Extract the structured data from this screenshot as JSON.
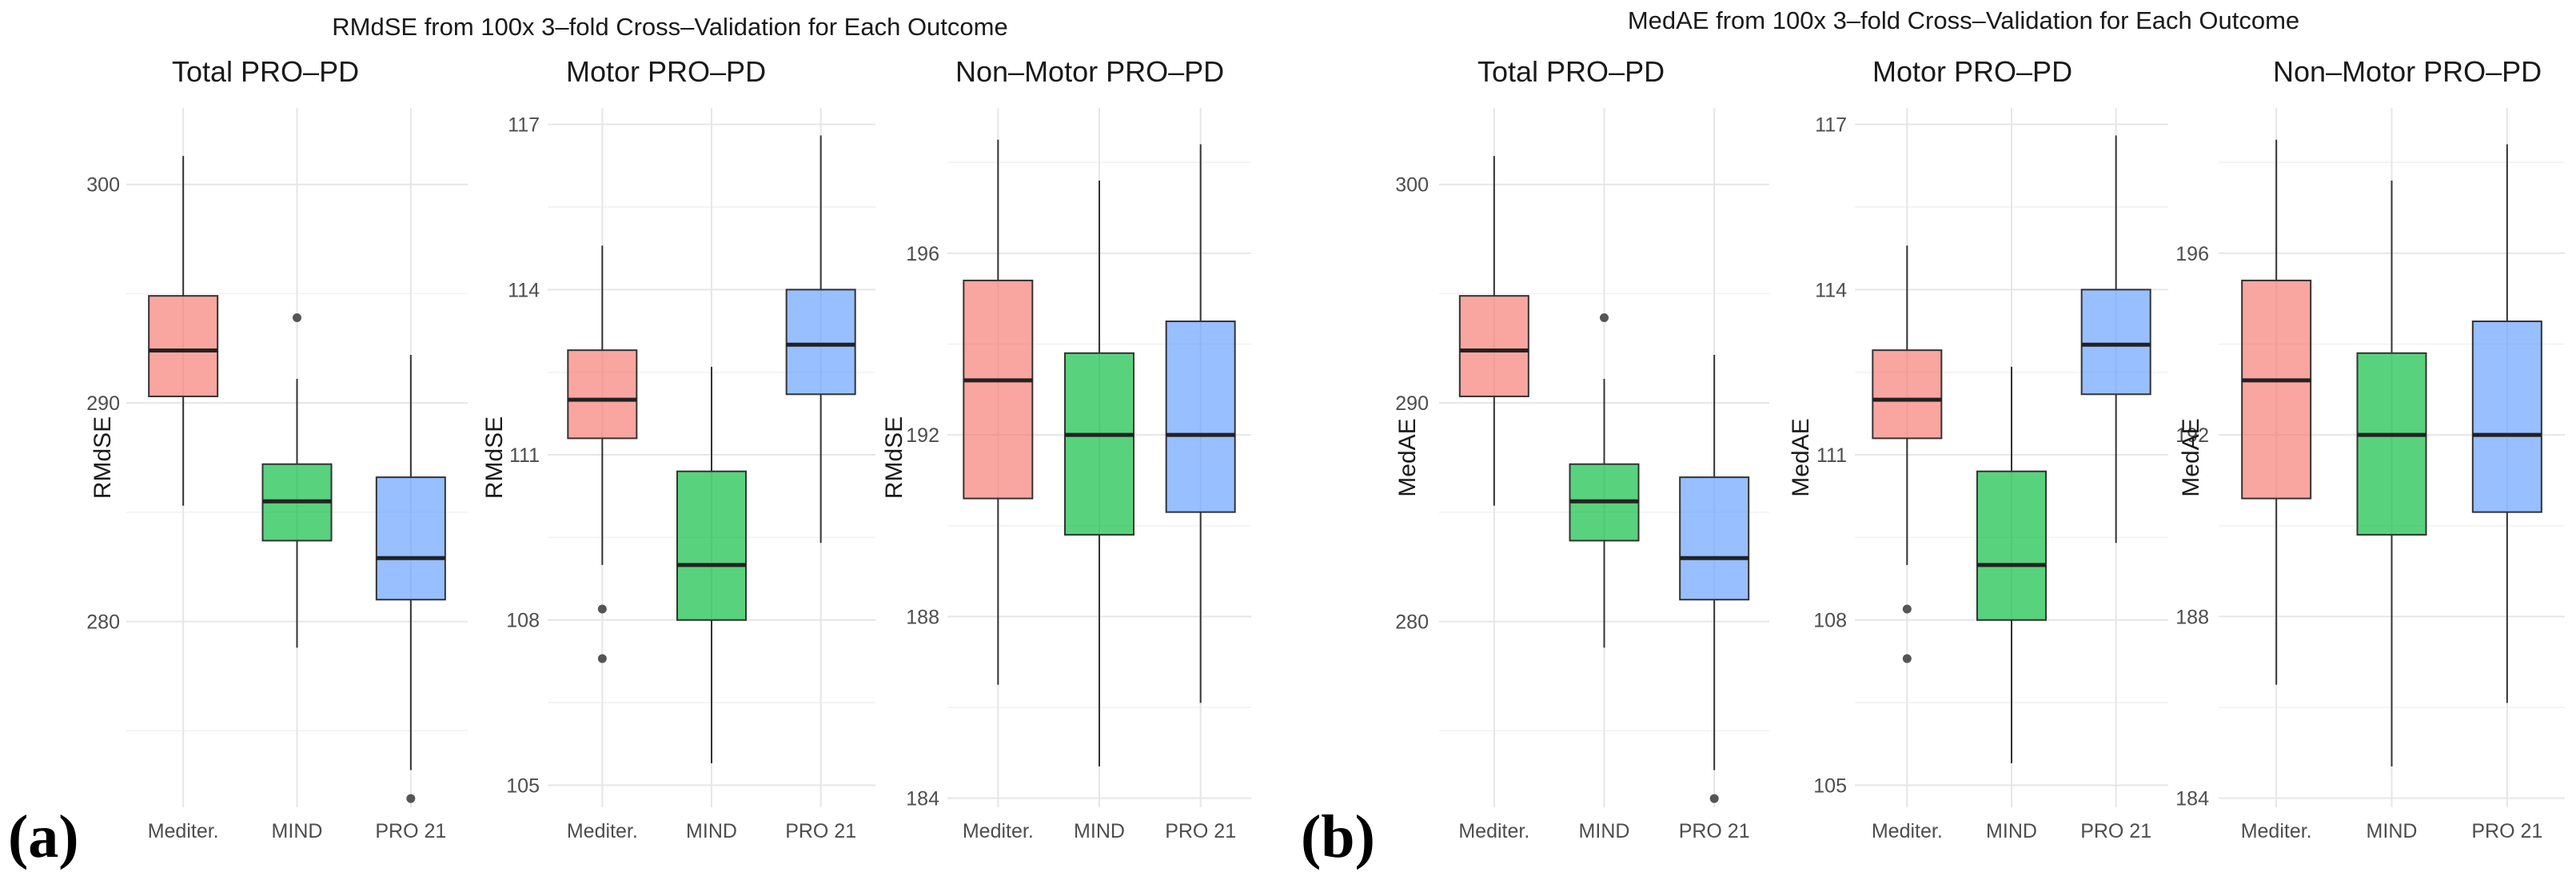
{
  "figures": [
    {
      "label": "(a)",
      "title": "RMdSE from 100x 3–fold Cross–Validation for Each Outcome"
    },
    {
      "label": "(b)",
      "title": "MedAE from 100x 3–fold Cross–Validation for Each Outcome"
    }
  ],
  "colors": {
    "Mediter.": "#F8766D",
    "MIND": "#00BA38",
    "PRO 21": "#619CFF"
  },
  "chart_data": [
    {
      "type": "box",
      "figure": "(a)",
      "title": "Total PRO–PD",
      "ylabel": "RMdSE",
      "categories": [
        "Mediter.",
        "MIND",
        "PRO 21"
      ],
      "yticks": [
        280,
        290,
        300
      ],
      "ylim": [
        271.5,
        303.5
      ],
      "grid": true,
      "boxes": [
        {
          "name": "Mediter.",
          "whisker_low": 285.3,
          "q1": 290.3,
          "median": 292.4,
          "q3": 294.9,
          "whisker_high": 301.3,
          "outliers": []
        },
        {
          "name": "MIND",
          "whisker_low": 278.8,
          "q1": 283.7,
          "median": 285.5,
          "q3": 287.2,
          "whisker_high": 291.1,
          "outliers": [
            293.9
          ]
        },
        {
          "name": "PRO 21",
          "whisker_low": 273.2,
          "q1": 281.0,
          "median": 282.9,
          "q3": 286.6,
          "whisker_high": 292.2,
          "outliers": [
            271.9
          ]
        }
      ]
    },
    {
      "type": "box",
      "figure": "(a)",
      "title": "Motor PRO–PD",
      "ylabel": "RMdSE",
      "categories": [
        "Mediter.",
        "MIND",
        "PRO 21"
      ],
      "yticks": [
        105,
        108,
        111,
        114,
        117
      ],
      "ylim": [
        104.6,
        117.3
      ],
      "grid": true,
      "boxes": [
        {
          "name": "Mediter.",
          "whisker_low": 109.0,
          "q1": 111.3,
          "median": 112.0,
          "q3": 112.9,
          "whisker_high": 114.8,
          "outliers": [
            108.2,
            107.3
          ]
        },
        {
          "name": "MIND",
          "whisker_low": 105.4,
          "q1": 108.0,
          "median": 109.0,
          "q3": 110.7,
          "whisker_high": 112.6,
          "outliers": []
        },
        {
          "name": "PRO 21",
          "whisker_low": 109.4,
          "q1": 112.1,
          "median": 113.0,
          "q3": 114.0,
          "whisker_high": 116.8,
          "outliers": []
        }
      ]
    },
    {
      "type": "box",
      "figure": "(a)",
      "title": "Non–Motor PRO–PD",
      "ylabel": "RMdSE",
      "categories": [
        "Mediter.",
        "MIND",
        "PRO 21"
      ],
      "yticks": [
        184,
        188,
        192,
        196
      ],
      "ylim": [
        183.8,
        199.2
      ],
      "grid": true,
      "boxes": [
        {
          "name": "Mediter.",
          "whisker_low": 186.5,
          "q1": 190.6,
          "median": 193.2,
          "q3": 195.4,
          "whisker_high": 198.5,
          "outliers": []
        },
        {
          "name": "MIND",
          "whisker_low": 184.7,
          "q1": 189.8,
          "median": 192.0,
          "q3": 193.8,
          "whisker_high": 197.6,
          "outliers": []
        },
        {
          "name": "PRO 21",
          "whisker_low": 186.1,
          "q1": 190.3,
          "median": 192.0,
          "q3": 194.5,
          "whisker_high": 198.4,
          "outliers": []
        }
      ]
    },
    {
      "type": "box",
      "figure": "(b)",
      "title": "Total PRO–PD",
      "ylabel": "MedAE",
      "categories": [
        "Mediter.",
        "MIND",
        "PRO 21"
      ],
      "yticks": [
        280,
        290,
        300
      ],
      "ylim": [
        271.5,
        303.5
      ],
      "grid": true,
      "boxes": [
        {
          "name": "Mediter.",
          "whisker_low": 285.3,
          "q1": 290.3,
          "median": 292.4,
          "q3": 294.9,
          "whisker_high": 301.3,
          "outliers": []
        },
        {
          "name": "MIND",
          "whisker_low": 278.8,
          "q1": 283.7,
          "median": 285.5,
          "q3": 287.2,
          "whisker_high": 291.1,
          "outliers": [
            293.9
          ]
        },
        {
          "name": "PRO 21",
          "whisker_low": 273.2,
          "q1": 281.0,
          "median": 282.9,
          "q3": 286.6,
          "whisker_high": 292.2,
          "outliers": [
            271.9
          ]
        }
      ]
    },
    {
      "type": "box",
      "figure": "(b)",
      "title": "Motor PRO–PD",
      "ylabel": "MedAE",
      "categories": [
        "Mediter.",
        "MIND",
        "PRO 21"
      ],
      "yticks": [
        105,
        108,
        111,
        114,
        117
      ],
      "ylim": [
        104.6,
        117.3
      ],
      "grid": true,
      "boxes": [
        {
          "name": "Mediter.",
          "whisker_low": 109.0,
          "q1": 111.3,
          "median": 112.0,
          "q3": 112.9,
          "whisker_high": 114.8,
          "outliers": [
            108.2,
            107.3
          ]
        },
        {
          "name": "MIND",
          "whisker_low": 105.4,
          "q1": 108.0,
          "median": 109.0,
          "q3": 110.7,
          "whisker_high": 112.6,
          "outliers": []
        },
        {
          "name": "PRO 21",
          "whisker_low": 109.4,
          "q1": 112.1,
          "median": 113.0,
          "q3": 114.0,
          "whisker_high": 116.8,
          "outliers": []
        }
      ]
    },
    {
      "type": "box",
      "figure": "(b)",
      "title": "Non–Motor PRO–PD",
      "ylabel": "MedAE",
      "categories": [
        "Mediter.",
        "MIND",
        "PRO 21"
      ],
      "yticks": [
        184,
        188,
        192,
        196
      ],
      "ylim": [
        183.8,
        199.2
      ],
      "grid": true,
      "boxes": [
        {
          "name": "Mediter.",
          "whisker_low": 186.5,
          "q1": 190.6,
          "median": 193.2,
          "q3": 195.4,
          "whisker_high": 198.5,
          "outliers": []
        },
        {
          "name": "MIND",
          "whisker_low": 184.7,
          "q1": 189.8,
          "median": 192.0,
          "q3": 193.8,
          "whisker_high": 197.6,
          "outliers": []
        },
        {
          "name": "PRO 21",
          "whisker_low": 186.1,
          "q1": 190.3,
          "median": 192.0,
          "q3": 194.5,
          "whisker_high": 198.4,
          "outliers": []
        }
      ]
    }
  ]
}
